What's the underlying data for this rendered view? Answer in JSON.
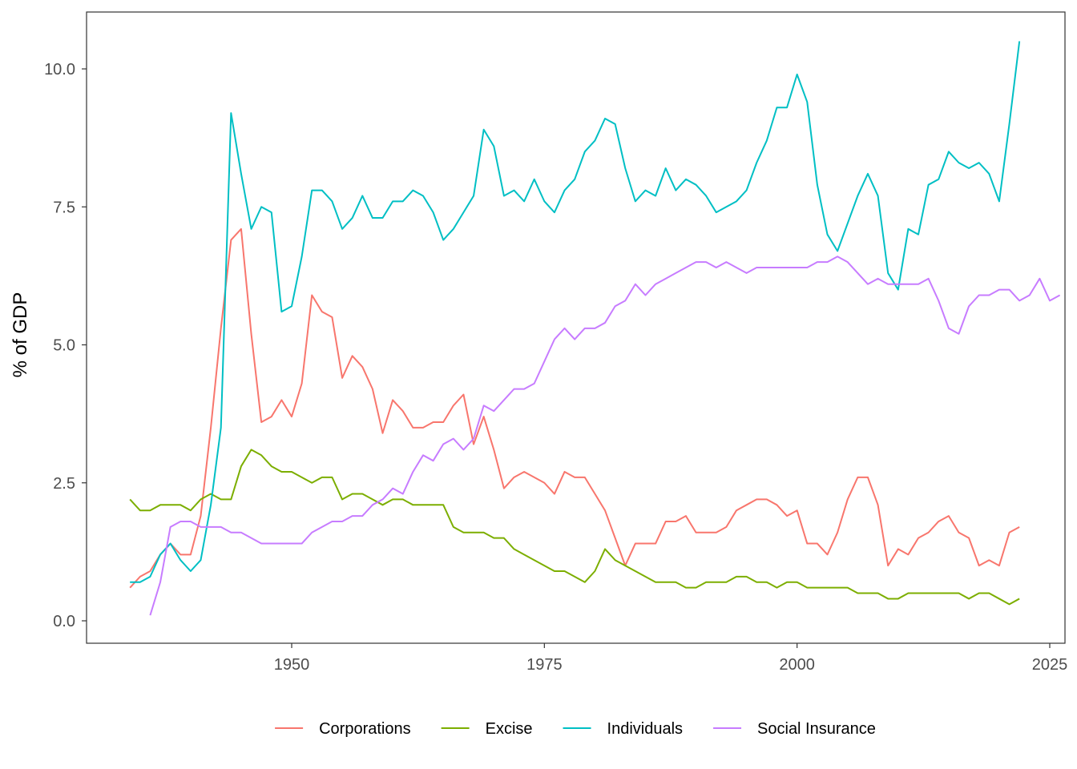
{
  "chart_data": {
    "type": "line",
    "title": "",
    "xlabel": "",
    "ylabel": "% of GDP",
    "xlim": [
      1933,
      2023
    ],
    "ylim": [
      0,
      10.5
    ],
    "x_ticks": [
      {
        "value": 1950,
        "label": "1950"
      },
      {
        "value": 1975,
        "label": "1975"
      },
      {
        "value": 2000,
        "label": "2000"
      },
      {
        "value": 2025,
        "label": "2025"
      }
    ],
    "y_ticks": [
      {
        "value": 0,
        "label": "0.0"
      },
      {
        "value": 2.5,
        "label": "2.5"
      },
      {
        "value": 5,
        "label": "5.0"
      },
      {
        "value": 7.5,
        "label": "7.5"
      },
      {
        "value": 10,
        "label": "10.0"
      }
    ],
    "grid": false,
    "legend_position": "bottom",
    "series": [
      {
        "name": "Corporations",
        "color": "#F8766D",
        "start_year": 1934,
        "values": [
          0.6,
          0.8,
          0.9,
          1.2,
          1.4,
          1.2,
          1.2,
          1.9,
          3.5,
          5.3,
          6.9,
          7.1,
          5.2,
          3.6,
          3.7,
          4.0,
          3.7,
          4.3,
          5.9,
          5.6,
          5.5,
          4.4,
          4.8,
          4.6,
          4.2,
          3.4,
          4.0,
          3.8,
          3.5,
          3.5,
          3.6,
          3.6,
          3.9,
          4.1,
          3.2,
          3.7,
          3.1,
          2.4,
          2.6,
          2.7,
          2.6,
          2.5,
          2.3,
          2.7,
          2.6,
          2.6,
          2.3,
          2.0,
          1.5,
          1.0,
          1.4,
          1.4,
          1.4,
          1.8,
          1.8,
          1.9,
          1.6,
          1.6,
          1.6,
          1.7,
          2.0,
          2.1,
          2.2,
          2.2,
          2.1,
          1.9,
          2.0,
          1.4,
          1.4,
          1.2,
          1.6,
          2.2,
          2.6,
          2.6,
          2.1,
          1.0,
          1.3,
          1.2,
          1.5,
          1.6,
          1.8,
          1.9,
          1.6,
          1.5,
          1.0,
          1.1,
          1.0,
          1.6,
          1.7
        ]
      },
      {
        "name": "Excise",
        "color": "#7CAE00",
        "start_year": 1934,
        "values": [
          2.2,
          2.0,
          2.0,
          2.1,
          2.1,
          2.1,
          2.0,
          2.2,
          2.3,
          2.2,
          2.2,
          2.8,
          3.1,
          3.0,
          2.8,
          2.7,
          2.7,
          2.6,
          2.5,
          2.6,
          2.6,
          2.2,
          2.3,
          2.3,
          2.2,
          2.1,
          2.2,
          2.2,
          2.1,
          2.1,
          2.1,
          2.1,
          1.7,
          1.6,
          1.6,
          1.6,
          1.5,
          1.5,
          1.3,
          1.2,
          1.1,
          1.0,
          0.9,
          0.9,
          0.8,
          0.7,
          0.9,
          1.3,
          1.1,
          1.0,
          0.9,
          0.8,
          0.7,
          0.7,
          0.7,
          0.6,
          0.6,
          0.7,
          0.7,
          0.7,
          0.8,
          0.8,
          0.7,
          0.7,
          0.6,
          0.7,
          0.7,
          0.6,
          0.6,
          0.6,
          0.6,
          0.6,
          0.5,
          0.5,
          0.5,
          0.4,
          0.4,
          0.5,
          0.5,
          0.5,
          0.5,
          0.5,
          0.5,
          0.4,
          0.5,
          0.5,
          0.4,
          0.3,
          0.4
        ]
      },
      {
        "name": "Individuals",
        "color": "#00BFC4",
        "start_year": 1934,
        "values": [
          0.7,
          0.7,
          0.8,
          1.2,
          1.4,
          1.1,
          0.9,
          1.1,
          2.1,
          3.5,
          9.2,
          8.1,
          7.1,
          7.5,
          7.4,
          5.6,
          5.7,
          6.6,
          7.8,
          7.8,
          7.6,
          7.1,
          7.3,
          7.7,
          7.3,
          7.3,
          7.6,
          7.6,
          7.8,
          7.7,
          7.4,
          6.9,
          7.1,
          7.4,
          7.7,
          8.9,
          8.6,
          7.7,
          7.8,
          7.6,
          8.0,
          7.6,
          7.4,
          7.8,
          8.0,
          8.5,
          8.7,
          9.1,
          9.0,
          8.2,
          7.6,
          7.8,
          7.7,
          8.2,
          7.8,
          8.0,
          7.9,
          7.7,
          7.4,
          7.5,
          7.6,
          7.8,
          8.3,
          8.7,
          9.3,
          9.3,
          9.9,
          9.4,
          7.9,
          7.0,
          6.7,
          7.2,
          7.7,
          8.1,
          7.7,
          6.3,
          6.0,
          7.1,
          7.0,
          7.9,
          8.0,
          8.5,
          8.3,
          8.2,
          8.3,
          8.1,
          7.6,
          9.0,
          10.5
        ]
      },
      {
        "name": "Social Insurance",
        "color": "#C77CFF",
        "start_year": 1936,
        "values": [
          0.1,
          0.7,
          1.7,
          1.8,
          1.8,
          1.7,
          1.7,
          1.7,
          1.6,
          1.6,
          1.5,
          1.4,
          1.4,
          1.4,
          1.4,
          1.4,
          1.6,
          1.7,
          1.8,
          1.8,
          1.9,
          1.9,
          2.1,
          2.2,
          2.4,
          2.3,
          2.7,
          3.0,
          2.9,
          3.2,
          3.3,
          3.1,
          3.3,
          3.9,
          3.8,
          4.0,
          4.2,
          4.2,
          4.3,
          4.7,
          5.1,
          5.3,
          5.1,
          5.3,
          5.3,
          5.4,
          5.7,
          5.8,
          6.1,
          5.9,
          6.1,
          6.2,
          6.3,
          6.4,
          6.5,
          6.5,
          6.4,
          6.5,
          6.4,
          6.3,
          6.4,
          6.4,
          6.4,
          6.4,
          6.4,
          6.4,
          6.5,
          6.5,
          6.6,
          6.5,
          6.3,
          6.1,
          6.2,
          6.1,
          6.1,
          6.1,
          6.1,
          6.2,
          5.8,
          5.3,
          5.2,
          5.7,
          5.9,
          5.9,
          6.0,
          6.0,
          5.8,
          5.9,
          6.2,
          5.8,
          5.9
        ]
      }
    ]
  }
}
